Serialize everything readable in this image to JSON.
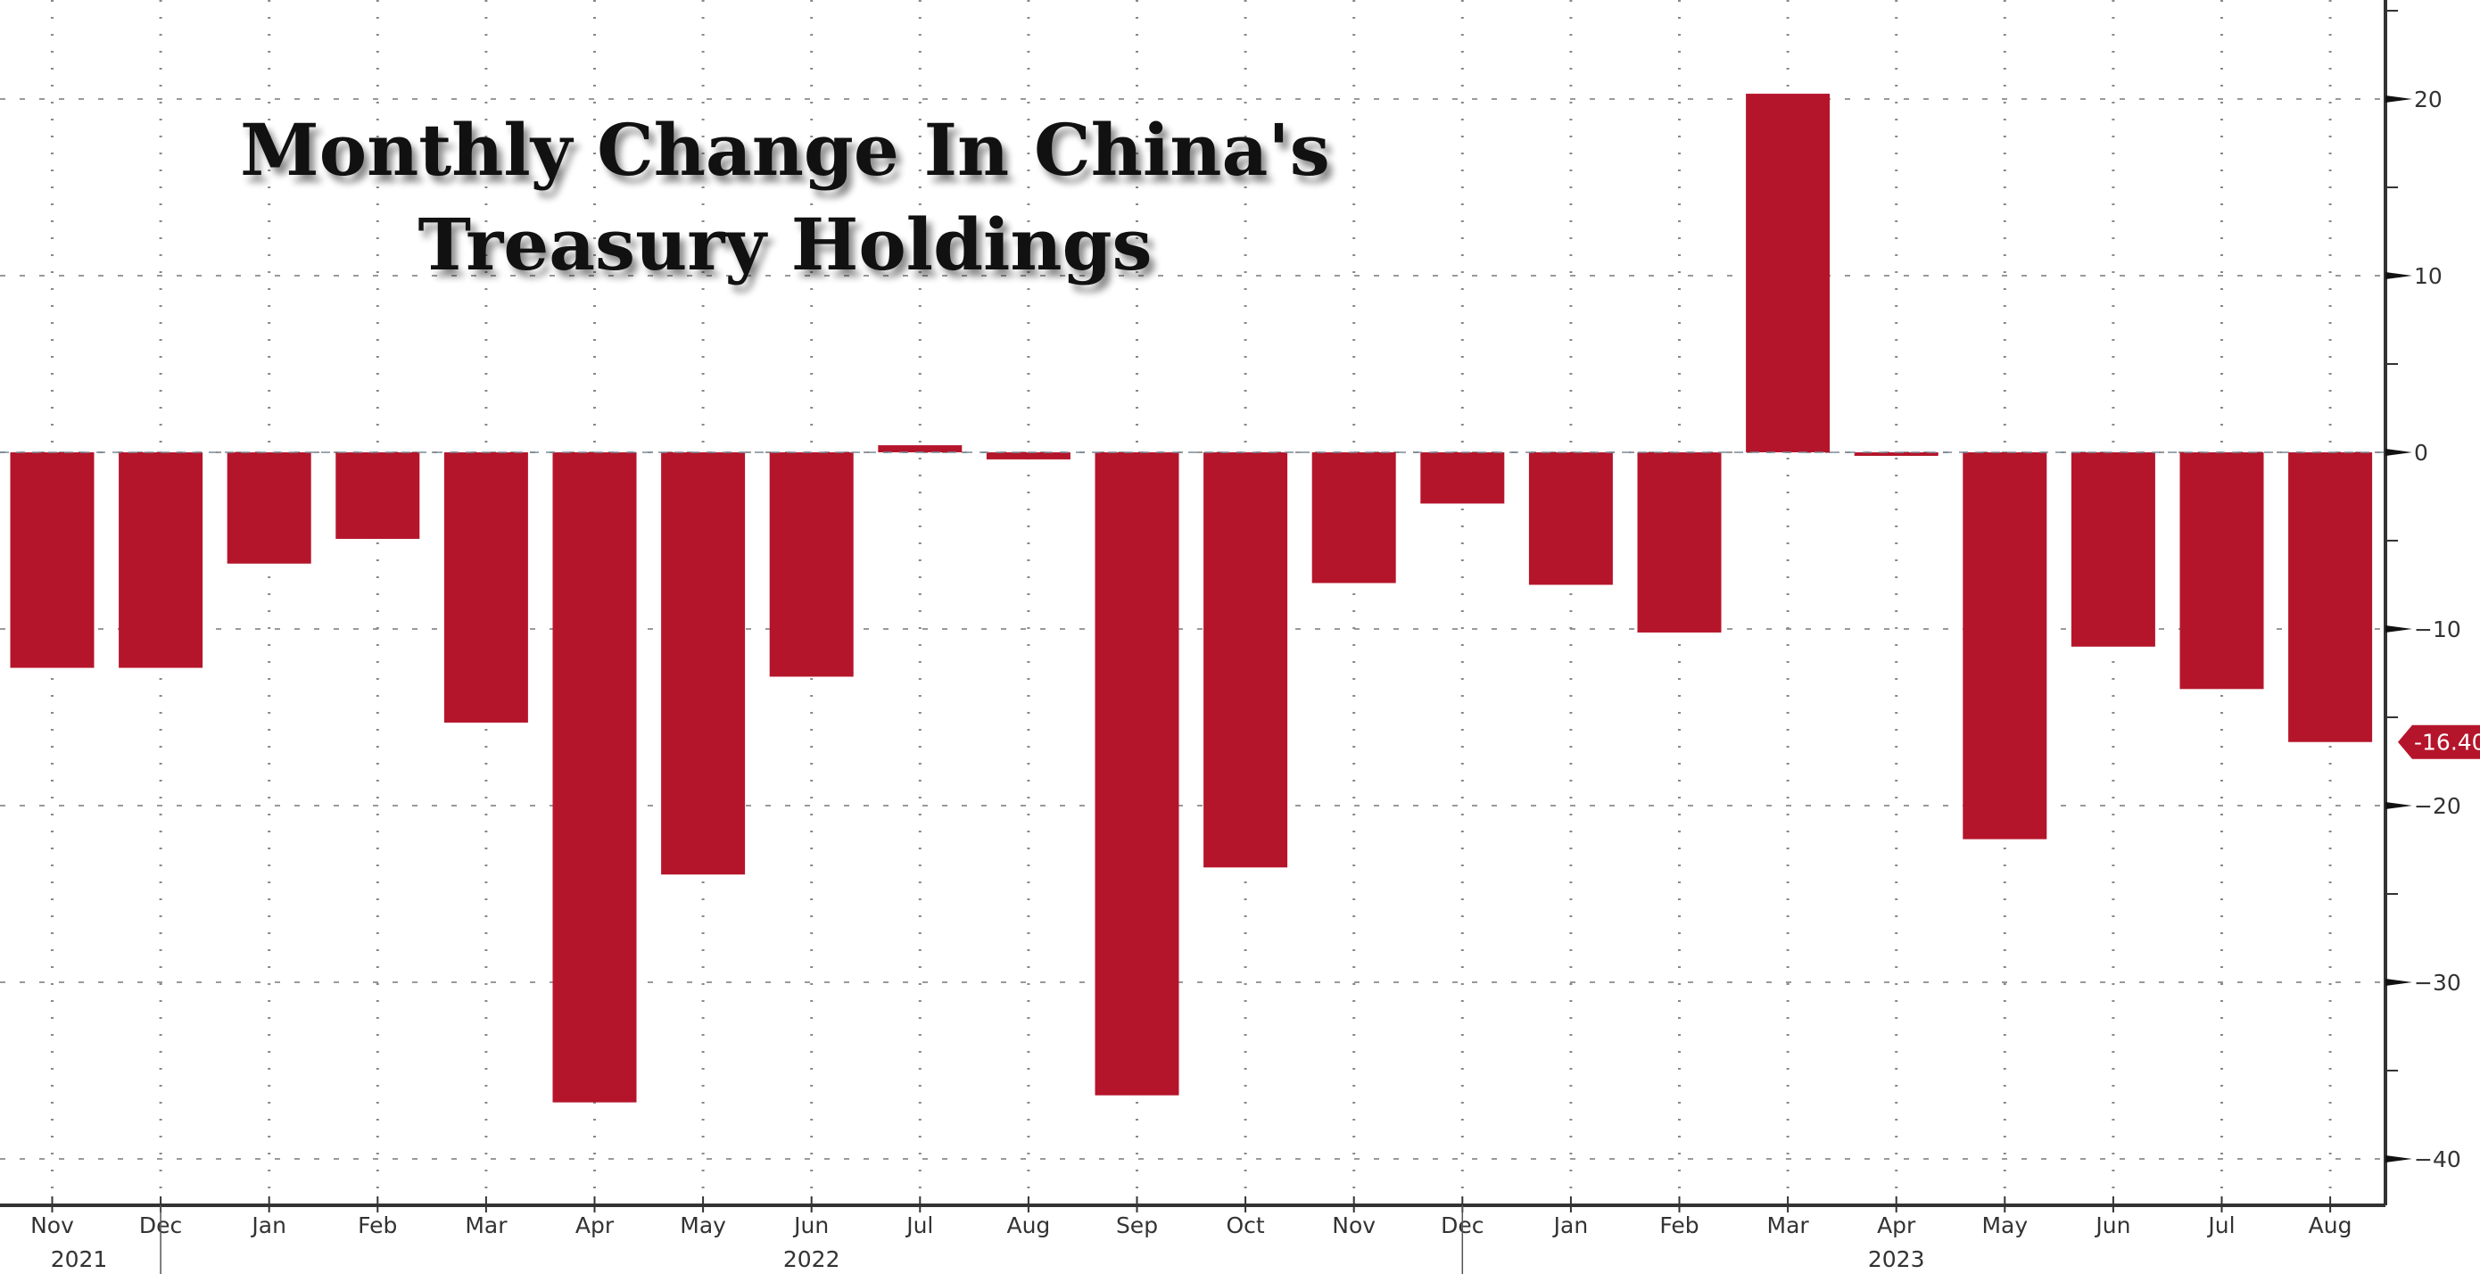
{
  "chart_data": {
    "type": "bar",
    "title": "Monthly Change In China's Treasury Holdings",
    "title_lines": [
      "Monthly Change In China's",
      "Treasury Holdings"
    ],
    "categories": [
      "Nov",
      "Dec",
      "Jan",
      "Feb",
      "Mar",
      "Apr",
      "May",
      "Jun",
      "Jul",
      "Aug",
      "Sep",
      "Oct",
      "Nov",
      "Dec",
      "Jan",
      "Feb",
      "Mar",
      "Apr",
      "May",
      "Jun",
      "Jul",
      "Aug"
    ],
    "years": [
      {
        "label": "2021",
        "at": 0
      },
      {
        "label": "2022",
        "at": 7
      },
      {
        "label": "2023",
        "at": 17
      }
    ],
    "year_breaks": [
      1,
      13
    ],
    "values": [
      -12.2,
      -12.2,
      -6.3,
      -4.9,
      -15.3,
      -36.8,
      -23.9,
      -12.7,
      0.4,
      -0.4,
      -36.4,
      -23.5,
      -7.4,
      -2.9,
      -7.5,
      -10.2,
      20.3,
      -0.2,
      -21.9,
      -11.0,
      -13.4,
      -16.4
    ],
    "ylim": [
      -42,
      25
    ],
    "yticks": [
      20,
      10,
      0,
      -10,
      -20,
      -30,
      -40
    ],
    "y_axis_side": "right",
    "last_value_label": "-16.40",
    "grid": true,
    "bar_color": "#b5152b"
  }
}
